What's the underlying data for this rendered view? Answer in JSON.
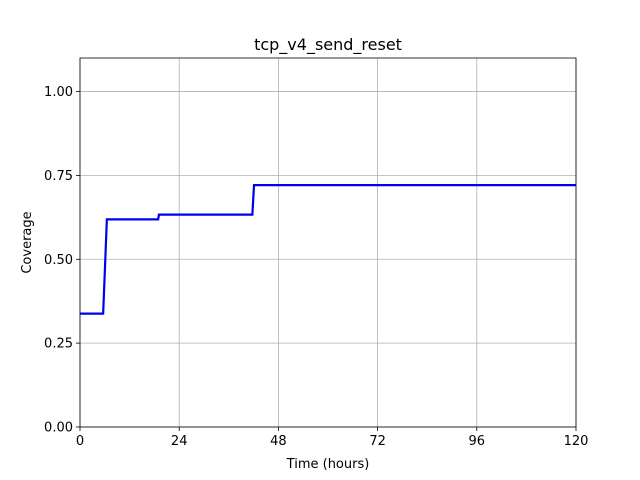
{
  "chart_data": {
    "type": "line",
    "title": "tcp_v4_send_reset",
    "xlabel": "Time (hours)",
    "ylabel": "Coverage",
    "xlim": [
      0,
      120
    ],
    "ylim": [
      0,
      1.1
    ],
    "x_ticks": [
      0,
      24,
      48,
      72,
      96,
      120
    ],
    "x_tick_labels": [
      "0",
      "24",
      "48",
      "72",
      "96",
      "120"
    ],
    "y_ticks": [
      0,
      0.25,
      0.5,
      0.75,
      1.0
    ],
    "y_tick_labels": [
      "0.00",
      "0.25",
      "0.50",
      "0.75",
      "1.00"
    ],
    "grid": true,
    "series": [
      {
        "color": "#0000ee",
        "step": true,
        "x": [
          0,
          5.6,
          6.5,
          18.9,
          19.1,
          41.7,
          42.1,
          120
        ],
        "y": [
          0.338,
          0.338,
          0.619,
          0.619,
          0.633,
          0.633,
          0.721,
          0.721
        ]
      }
    ]
  }
}
